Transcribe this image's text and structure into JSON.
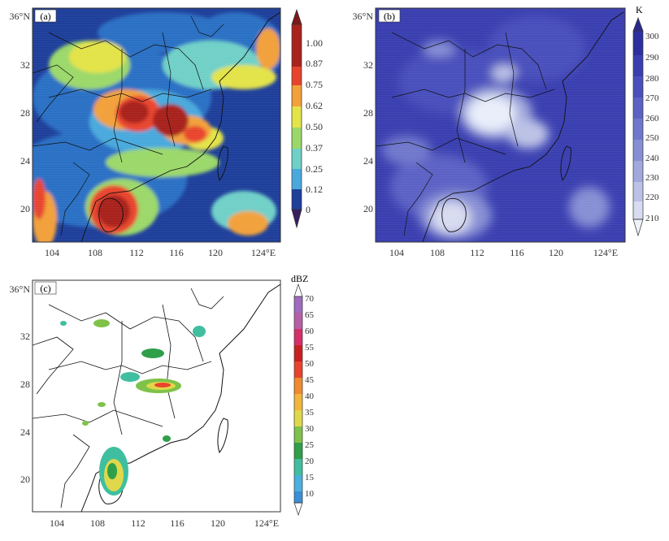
{
  "panels": {
    "a": {
      "label": "(a)",
      "colorbar": {
        "title": "",
        "ticks": [
          "1.00",
          "0.87",
          "0.75",
          "0.62",
          "0.50",
          "0.37",
          "0.25",
          "0.12",
          "0"
        ],
        "colors": [
          "#3a1f5e",
          "#1e3f9a",
          "#2a6fc4",
          "#4aa9dc",
          "#6fd0c8",
          "#9bd86a",
          "#e3e34a",
          "#f2a13a",
          "#e8442d",
          "#a8231d",
          "#7a1a1a"
        ]
      }
    },
    "b": {
      "label": "(b)",
      "colorbar": {
        "title": "K",
        "ticks": [
          "300",
          "290",
          "280",
          "270",
          "260",
          "250",
          "240",
          "230",
          "220",
          "210"
        ],
        "colors": [
          "#2e2f9e",
          "#3a3fb0",
          "#4a4fbc",
          "#5c62c4",
          "#7078cc",
          "#878fd4",
          "#a0a8dc",
          "#bcc2e6",
          "#d8dcf0",
          "#f0f2fa"
        ]
      }
    },
    "c": {
      "label": "(c)",
      "colorbar": {
        "title": "dBZ",
        "ticks": [
          "70",
          "65",
          "60",
          "55",
          "50",
          "45",
          "40",
          "35",
          "30",
          "25",
          "20",
          "15",
          "10"
        ],
        "colors": [
          "#9f6cc0",
          "#b65fa6",
          "#d62f6a",
          "#c82020",
          "#e8442d",
          "#f08a2c",
          "#f2b63a",
          "#dfd84a",
          "#7fc24a",
          "#2f9f4a",
          "#3fbfa0",
          "#4ab0e0",
          "#3a8fd8"
        ]
      }
    }
  },
  "axes": {
    "y_ticks": [
      "36°N",
      "32",
      "28",
      "24",
      "20"
    ],
    "x_ticks": [
      "104",
      "108",
      "112",
      "116",
      "120",
      "124°E"
    ]
  }
}
